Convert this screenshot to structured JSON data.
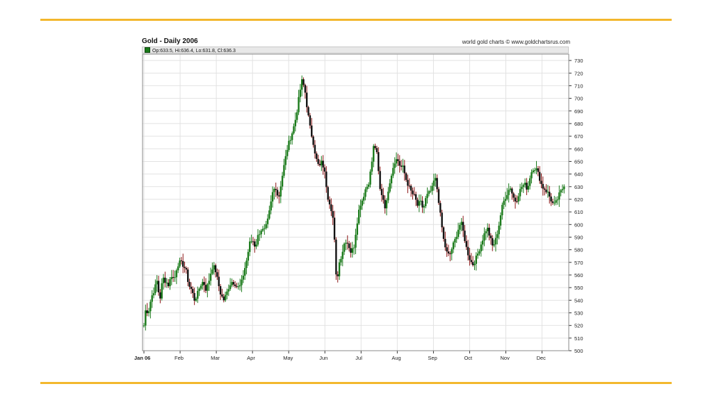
{
  "chart_data": {
    "type": "candlestick",
    "title": "Gold - Daily 2006",
    "source": "world gold charts © www.goldchartsrus.com",
    "legend": {
      "label": "Op:633.5, Hi:636.4, Lo:631.8, Cl:636.3",
      "color": "#1a7a1a"
    },
    "ylim": [
      500,
      735
    ],
    "y_ticks": [
      500,
      510,
      520,
      530,
      540,
      550,
      560,
      570,
      580,
      590,
      600,
      610,
      620,
      630,
      640,
      650,
      660,
      670,
      680,
      690,
      700,
      710,
      720,
      730
    ],
    "y_axis_position": "right",
    "grid": true,
    "x_ticks": [
      {
        "label": "Jan 06",
        "pos": 0.0,
        "bold": true
      },
      {
        "label": "Feb",
        "pos": 1.0
      },
      {
        "label": "Mar",
        "pos": 2.0
      },
      {
        "label": "Apr",
        "pos": 3.0
      },
      {
        "label": "May",
        "pos": 4.0
      },
      {
        "label": "Jun",
        "pos": 5.0
      },
      {
        "label": "Jul",
        "pos": 6.0
      },
      {
        "label": "Aug",
        "pos": 7.0
      },
      {
        "label": "Sep",
        "pos": 8.0
      },
      {
        "label": "Oct",
        "pos": 9.0
      },
      {
        "label": "Nov",
        "pos": 10.0
      },
      {
        "label": "Dec",
        "pos": 11.0
      }
    ],
    "x_range": [
      0,
      11.7
    ],
    "closes": [
      {
        "t": 0.0,
        "c": 520
      },
      {
        "t": 0.05,
        "c": 533
      },
      {
        "t": 0.12,
        "c": 530
      },
      {
        "t": 0.2,
        "c": 542
      },
      {
        "t": 0.28,
        "c": 548
      },
      {
        "t": 0.36,
        "c": 555
      },
      {
        "t": 0.44,
        "c": 540
      },
      {
        "t": 0.52,
        "c": 558
      },
      {
        "t": 0.6,
        "c": 555
      },
      {
        "t": 0.68,
        "c": 552
      },
      {
        "t": 0.76,
        "c": 560
      },
      {
        "t": 0.84,
        "c": 556
      },
      {
        "t": 0.92,
        "c": 568
      },
      {
        "t": 1.0,
        "c": 570
      },
      {
        "t": 1.08,
        "c": 568
      },
      {
        "t": 1.16,
        "c": 564
      },
      {
        "t": 1.24,
        "c": 552
      },
      {
        "t": 1.32,
        "c": 548
      },
      {
        "t": 1.4,
        "c": 540
      },
      {
        "t": 1.48,
        "c": 545
      },
      {
        "t": 1.56,
        "c": 552
      },
      {
        "t": 1.64,
        "c": 555
      },
      {
        "t": 1.72,
        "c": 548
      },
      {
        "t": 1.8,
        "c": 556
      },
      {
        "t": 1.88,
        "c": 566
      },
      {
        "t": 1.96,
        "c": 566
      },
      {
        "t": 2.04,
        "c": 555
      },
      {
        "t": 2.12,
        "c": 545
      },
      {
        "t": 2.2,
        "c": 540
      },
      {
        "t": 2.28,
        "c": 545
      },
      {
        "t": 2.36,
        "c": 552
      },
      {
        "t": 2.44,
        "c": 555
      },
      {
        "t": 2.52,
        "c": 553
      },
      {
        "t": 2.6,
        "c": 550
      },
      {
        "t": 2.68,
        "c": 552
      },
      {
        "t": 2.76,
        "c": 562
      },
      {
        "t": 2.84,
        "c": 572
      },
      {
        "t": 2.92,
        "c": 585
      },
      {
        "t": 3.0,
        "c": 588
      },
      {
        "t": 3.08,
        "c": 582
      },
      {
        "t": 3.16,
        "c": 592
      },
      {
        "t": 3.24,
        "c": 596
      },
      {
        "t": 3.32,
        "c": 595
      },
      {
        "t": 3.4,
        "c": 600
      },
      {
        "t": 3.48,
        "c": 612
      },
      {
        "t": 3.56,
        "c": 626
      },
      {
        "t": 3.64,
        "c": 630
      },
      {
        "t": 3.72,
        "c": 620
      },
      {
        "t": 3.8,
        "c": 635
      },
      {
        "t": 3.88,
        "c": 648
      },
      {
        "t": 3.96,
        "c": 660
      },
      {
        "t": 4.04,
        "c": 668
      },
      {
        "t": 4.12,
        "c": 675
      },
      {
        "t": 4.2,
        "c": 685
      },
      {
        "t": 4.28,
        "c": 700
      },
      {
        "t": 4.36,
        "c": 714
      },
      {
        "t": 4.44,
        "c": 708
      },
      {
        "t": 4.52,
        "c": 690
      },
      {
        "t": 4.6,
        "c": 675
      },
      {
        "t": 4.68,
        "c": 665
      },
      {
        "t": 4.76,
        "c": 652
      },
      {
        "t": 4.84,
        "c": 645
      },
      {
        "t": 4.92,
        "c": 650
      },
      {
        "t": 5.0,
        "c": 640
      },
      {
        "t": 5.08,
        "c": 622
      },
      {
        "t": 5.16,
        "c": 615
      },
      {
        "t": 5.24,
        "c": 602
      },
      {
        "t": 5.32,
        "c": 553
      },
      {
        "t": 5.4,
        "c": 570
      },
      {
        "t": 5.48,
        "c": 578
      },
      {
        "t": 5.56,
        "c": 588
      },
      {
        "t": 5.64,
        "c": 585
      },
      {
        "t": 5.72,
        "c": 578
      },
      {
        "t": 5.8,
        "c": 582
      },
      {
        "t": 5.88,
        "c": 600
      },
      {
        "t": 5.96,
        "c": 615
      },
      {
        "t": 6.04,
        "c": 620
      },
      {
        "t": 6.12,
        "c": 628
      },
      {
        "t": 6.2,
        "c": 632
      },
      {
        "t": 6.28,
        "c": 645
      },
      {
        "t": 6.36,
        "c": 665
      },
      {
        "t": 6.44,
        "c": 655
      },
      {
        "t": 6.52,
        "c": 628
      },
      {
        "t": 6.6,
        "c": 622
      },
      {
        "t": 6.68,
        "c": 612
      },
      {
        "t": 6.76,
        "c": 630
      },
      {
        "t": 6.84,
        "c": 640
      },
      {
        "t": 6.92,
        "c": 650
      },
      {
        "t": 7.0,
        "c": 652
      },
      {
        "t": 7.08,
        "c": 646
      },
      {
        "t": 7.16,
        "c": 645
      },
      {
        "t": 7.24,
        "c": 636
      },
      {
        "t": 7.32,
        "c": 630
      },
      {
        "t": 7.4,
        "c": 625
      },
      {
        "t": 7.48,
        "c": 622
      },
      {
        "t": 7.56,
        "c": 615
      },
      {
        "t": 7.64,
        "c": 618
      },
      {
        "t": 7.72,
        "c": 612
      },
      {
        "t": 7.8,
        "c": 622
      },
      {
        "t": 7.88,
        "c": 625
      },
      {
        "t": 7.96,
        "c": 628
      },
      {
        "t": 8.04,
        "c": 638
      },
      {
        "t": 8.12,
        "c": 625
      },
      {
        "t": 8.2,
        "c": 605
      },
      {
        "t": 8.28,
        "c": 588
      },
      {
        "t": 8.36,
        "c": 578
      },
      {
        "t": 8.44,
        "c": 575
      },
      {
        "t": 8.52,
        "c": 582
      },
      {
        "t": 8.6,
        "c": 588
      },
      {
        "t": 8.68,
        "c": 596
      },
      {
        "t": 8.76,
        "c": 602
      },
      {
        "t": 8.84,
        "c": 592
      },
      {
        "t": 8.92,
        "c": 580
      },
      {
        "t": 9.0,
        "c": 573
      },
      {
        "t": 9.08,
        "c": 568
      },
      {
        "t": 9.16,
        "c": 572
      },
      {
        "t": 9.24,
        "c": 578
      },
      {
        "t": 9.32,
        "c": 585
      },
      {
        "t": 9.4,
        "c": 592
      },
      {
        "t": 9.48,
        "c": 598
      },
      {
        "t": 9.56,
        "c": 590
      },
      {
        "t": 9.64,
        "c": 582
      },
      {
        "t": 9.72,
        "c": 588
      },
      {
        "t": 9.8,
        "c": 598
      },
      {
        "t": 9.88,
        "c": 612
      },
      {
        "t": 9.96,
        "c": 620
      },
      {
        "t": 10.04,
        "c": 625
      },
      {
        "t": 10.12,
        "c": 630
      },
      {
        "t": 10.2,
        "c": 622
      },
      {
        "t": 10.28,
        "c": 618
      },
      {
        "t": 10.36,
        "c": 625
      },
      {
        "t": 10.44,
        "c": 630
      },
      {
        "t": 10.52,
        "c": 632
      },
      {
        "t": 10.6,
        "c": 628
      },
      {
        "t": 10.68,
        "c": 640
      },
      {
        "t": 10.76,
        "c": 645
      },
      {
        "t": 10.84,
        "c": 644
      },
      {
        "t": 10.92,
        "c": 638
      },
      {
        "t": 11.0,
        "c": 630
      },
      {
        "t": 11.08,
        "c": 628
      },
      {
        "t": 11.16,
        "c": 625
      },
      {
        "t": 11.24,
        "c": 620
      },
      {
        "t": 11.32,
        "c": 615
      },
      {
        "t": 11.4,
        "c": 618
      },
      {
        "t": 11.48,
        "c": 624
      },
      {
        "t": 11.56,
        "c": 628
      },
      {
        "t": 11.64,
        "c": 634
      }
    ],
    "colors": {
      "up": "#1a7a1a",
      "down": "#111111",
      "line_up": "#1a7a1a",
      "line_down": "#8a1414",
      "grid": "#e2e2e2",
      "frame": "#888888"
    }
  },
  "decor": {
    "rule_color": "#f3b72c"
  }
}
